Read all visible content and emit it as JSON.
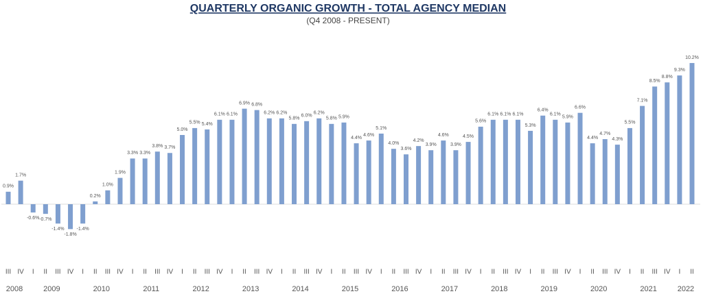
{
  "chart_data": {
    "type": "bar",
    "title": "QUARTERLY ORGANIC GROWTH - TOTAL AGENCY MEDIAN",
    "subtitle": "(Q4 2008 - PRESENT)",
    "categories": [
      "III",
      "IV",
      "I",
      "II",
      "III",
      "IV",
      "I",
      "II",
      "III",
      "IV",
      "I",
      "II",
      "III",
      "IV",
      "I",
      "II",
      "III",
      "IV",
      "I",
      "II",
      "III",
      "IV",
      "I",
      "II",
      "III",
      "IV",
      "I",
      "II",
      "III",
      "IV",
      "I",
      "II",
      "III",
      "IV",
      "I",
      "II",
      "III",
      "IV",
      "I",
      "II",
      "III",
      "IV",
      "I",
      "II",
      "III",
      "IV",
      "I",
      "II",
      "III",
      "IV",
      "I",
      "II",
      "III",
      "IV",
      "I",
      "II"
    ],
    "years": [
      "2008",
      "2009",
      "2010",
      "2011",
      "2012",
      "2013",
      "2014",
      "2015",
      "2016",
      "2017",
      "2018",
      "2019",
      "2020",
      "2021",
      "2022"
    ],
    "values": [
      0.9,
      1.7,
      -0.6,
      -0.7,
      -1.4,
      -1.8,
      -1.4,
      0.2,
      1.0,
      1.9,
      3.3,
      3.3,
      3.8,
      3.7,
      5.0,
      5.5,
      5.4,
      6.1,
      6.1,
      6.9,
      6.8,
      6.2,
      6.2,
      5.8,
      6.0,
      6.2,
      5.8,
      5.9,
      4.4,
      4.6,
      5.1,
      4.0,
      3.6,
      4.2,
      3.9,
      4.6,
      3.9,
      4.5,
      5.6,
      6.1,
      6.1,
      6.1,
      5.3,
      6.4,
      6.1,
      5.9,
      6.6,
      4.4,
      4.7,
      4.3,
      5.5,
      7.1,
      8.5,
      8.8,
      9.3,
      10.2
    ],
    "value_labels": [
      "0.9%",
      "1.7%",
      "-0.6%",
      "-0.7%",
      "-1.4%",
      "-1.8%",
      "-1.4%",
      "0.2%",
      "1.0%",
      "1.9%",
      "3.3%",
      "3.3%",
      "3.8%",
      "3.7%",
      "5.0%",
      "5.5%",
      "5.4%",
      "6.1%",
      "6.1%",
      "6.9%",
      "6.8%",
      "6.2%",
      "6.2%",
      "5.8%",
      "6.0%",
      "6.2%",
      "5.8%",
      "5.9%",
      "4.4%",
      "4.6%",
      "5.1%",
      "4.0%",
      "3.6%",
      "4.2%",
      "3.9%",
      "4.6%",
      "3.9%",
      "4.5%",
      "5.6%",
      "6.1%",
      "6.1%",
      "6.1%",
      "5.3%",
      "6.4%",
      "6.1%",
      "5.9%",
      "6.6%",
      "4.4%",
      "4.7%",
      "4.3%",
      "5.5%",
      "7.1%",
      "8.5%",
      "8.8%",
      "9.3%",
      "10.2%"
    ],
    "color": "#7f9fcf"
  }
}
